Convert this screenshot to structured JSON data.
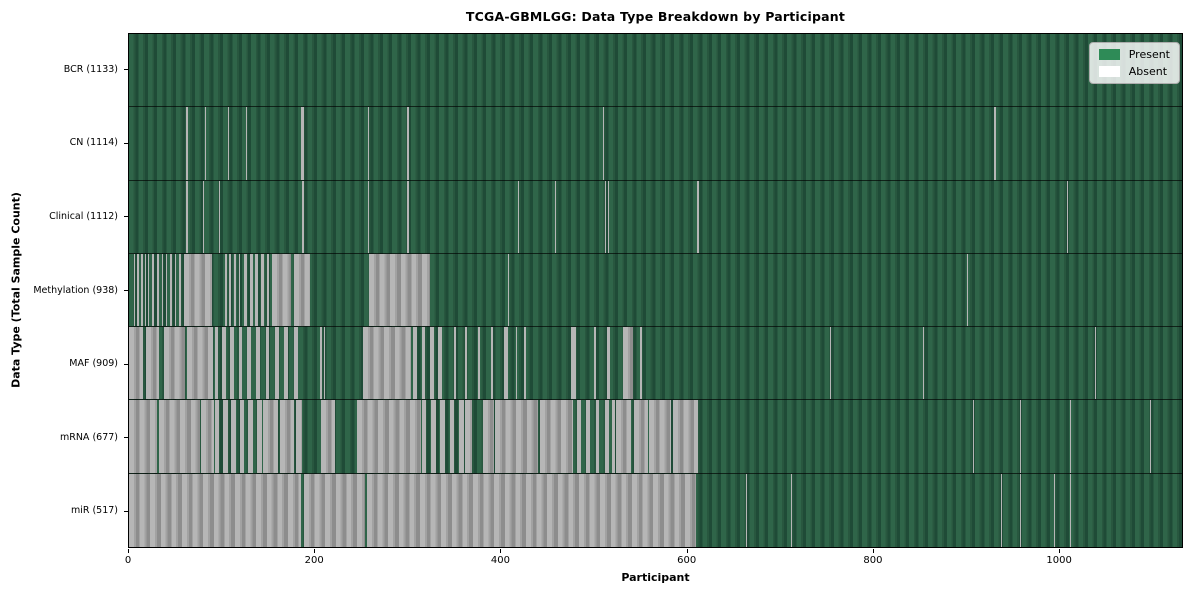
{
  "title": "TCGA-GBMLGG: Data Type Breakdown by Participant",
  "x_axis": {
    "label": "Participant",
    "ticks": [
      0,
      200,
      400,
      600,
      800,
      1000
    ]
  },
  "y_axis": {
    "label": "Data Type (Total Sample Count)"
  },
  "legend": {
    "items": [
      {
        "label": "Present",
        "color": "#2e8b57"
      },
      {
        "label": "Absent",
        "color": "#ffffff"
      }
    ]
  },
  "chart_data": {
    "type": "heatmap",
    "title": "TCGA-GBMLGG: Data Type Breakdown by Participant",
    "xlabel": "Participant",
    "ylabel": "Data Type (Total Sample Count)",
    "x_ticks": [
      0,
      200,
      400,
      600,
      800,
      1000
    ],
    "n_participants": 1133,
    "xlim": [
      0,
      1133
    ],
    "grid": false,
    "legend_position": "upper right",
    "colors": {
      "present": "#2e8b57",
      "absent": "#ffffff",
      "present_render": "#2f6549",
      "absent_render": "#a8a8a8",
      "row_divider": "#1a1a1a"
    },
    "value_meaning": {
      "present": 1,
      "absent": 0
    },
    "rows": [
      {
        "key": "bcr",
        "label": "BCR (1133)",
        "data_type": "BCR",
        "total": 1133,
        "absent_runs": []
      },
      {
        "key": "cn",
        "label": "CN (1114)",
        "data_type": "CN",
        "total": 1114,
        "absent_runs": [
          [
            61,
            63
          ],
          [
            77,
            78
          ],
          [
            82,
            83
          ],
          [
            107,
            108
          ],
          [
            126,
            127
          ],
          [
            185,
            188
          ],
          [
            257,
            258
          ],
          [
            299,
            301
          ],
          [
            510,
            511
          ],
          [
            516,
            517
          ],
          [
            931,
            933
          ]
        ]
      },
      {
        "key": "clinical",
        "label": "Clinical (1112)",
        "data_type": "Clinical",
        "total": 1112,
        "absent_runs": [
          [
            61,
            63
          ],
          [
            77,
            78
          ],
          [
            80,
            81
          ],
          [
            97,
            98
          ],
          [
            186,
            188
          ],
          [
            257,
            258
          ],
          [
            299,
            301
          ],
          [
            419,
            420
          ],
          [
            458,
            459
          ],
          [
            512,
            513
          ],
          [
            515,
            516
          ],
          [
            611,
            613
          ],
          [
            1009,
            1010
          ]
        ]
      },
      {
        "key": "methylation",
        "label": "Methylation (938)",
        "data_type": "Methylation",
        "total": 938,
        "absent_runs": [
          [
            5,
            7
          ],
          [
            9,
            11
          ],
          [
            13,
            15
          ],
          [
            17,
            18
          ],
          [
            20,
            22
          ],
          [
            25,
            27
          ],
          [
            30,
            32
          ],
          [
            35,
            37
          ],
          [
            40,
            41
          ],
          [
            44,
            46
          ],
          [
            49,
            51
          ],
          [
            54,
            56
          ],
          [
            59,
            89
          ],
          [
            103,
            105
          ],
          [
            108,
            110
          ],
          [
            113,
            115
          ],
          [
            118,
            119
          ],
          [
            124,
            127
          ],
          [
            130,
            133
          ],
          [
            136,
            139
          ],
          [
            142,
            145
          ],
          [
            148,
            151
          ],
          [
            154,
            174
          ],
          [
            177,
            195
          ],
          [
            258,
            324
          ],
          [
            408,
            409
          ],
          [
            902,
            903
          ]
        ]
      },
      {
        "key": "maf",
        "label": "MAF (909)",
        "data_type": "MAF",
        "total": 909,
        "absent_runs": [
          [
            0,
            15
          ],
          [
            18,
            32
          ],
          [
            38,
            60
          ],
          [
            62,
            90
          ],
          [
            92,
            96
          ],
          [
            100,
            104
          ],
          [
            109,
            113
          ],
          [
            118,
            122
          ],
          [
            127,
            131
          ],
          [
            137,
            141
          ],
          [
            147,
            151
          ],
          [
            157,
            161
          ],
          [
            167,
            171
          ],
          [
            178,
            182
          ],
          [
            206,
            208
          ],
          [
            210,
            211
          ],
          [
            252,
            303
          ],
          [
            306,
            310
          ],
          [
            315,
            319
          ],
          [
            324,
            328
          ],
          [
            333,
            337
          ],
          [
            350,
            352
          ],
          [
            362,
            364
          ],
          [
            376,
            378
          ],
          [
            390,
            392
          ],
          [
            404,
            408
          ],
          [
            416,
            418
          ],
          [
            425,
            427
          ],
          [
            476,
            481
          ],
          [
            500,
            502
          ],
          [
            514,
            518
          ],
          [
            531,
            542
          ],
          [
            550,
            552
          ],
          [
            754,
            755
          ],
          [
            854,
            855
          ],
          [
            1039,
            1040
          ]
        ]
      },
      {
        "key": "mrna",
        "label": "mRNA (677)",
        "data_type": "mRNA",
        "total": 677,
        "absent_runs": [
          [
            0,
            30
          ],
          [
            32,
            76
          ],
          [
            78,
            91
          ],
          [
            92,
            97
          ],
          [
            101,
            106
          ],
          [
            110,
            115
          ],
          [
            119,
            124
          ],
          [
            128,
            133
          ],
          [
            138,
            143
          ],
          [
            144,
            160
          ],
          [
            162,
            178
          ],
          [
            180,
            186
          ],
          [
            207,
            222
          ],
          [
            245,
            314
          ],
          [
            315,
            320
          ],
          [
            325,
            330
          ],
          [
            335,
            340
          ],
          [
            345,
            350
          ],
          [
            355,
            360
          ],
          [
            362,
            369
          ],
          [
            381,
            393
          ],
          [
            394,
            440
          ],
          [
            442,
            478
          ],
          [
            482,
            486
          ],
          [
            492,
            496
          ],
          [
            502,
            506
          ],
          [
            512,
            516
          ],
          [
            520,
            523
          ],
          [
            524,
            540
          ],
          [
            543,
            558
          ],
          [
            560,
            583
          ],
          [
            585,
            612
          ],
          [
            908,
            909
          ],
          [
            959,
            960
          ],
          [
            1013,
            1014
          ],
          [
            1099,
            1100
          ]
        ]
      },
      {
        "key": "mir",
        "label": "miR (517)",
        "data_type": "miR",
        "total": 517,
        "absent_runs": [
          [
            0,
            185
          ],
          [
            188,
            254
          ],
          [
            256,
            610
          ],
          [
            664,
            665
          ],
          [
            712,
            713
          ],
          [
            938,
            939
          ],
          [
            959,
            960
          ],
          [
            995,
            996
          ],
          [
            1013,
            1014
          ]
        ]
      }
    ]
  }
}
